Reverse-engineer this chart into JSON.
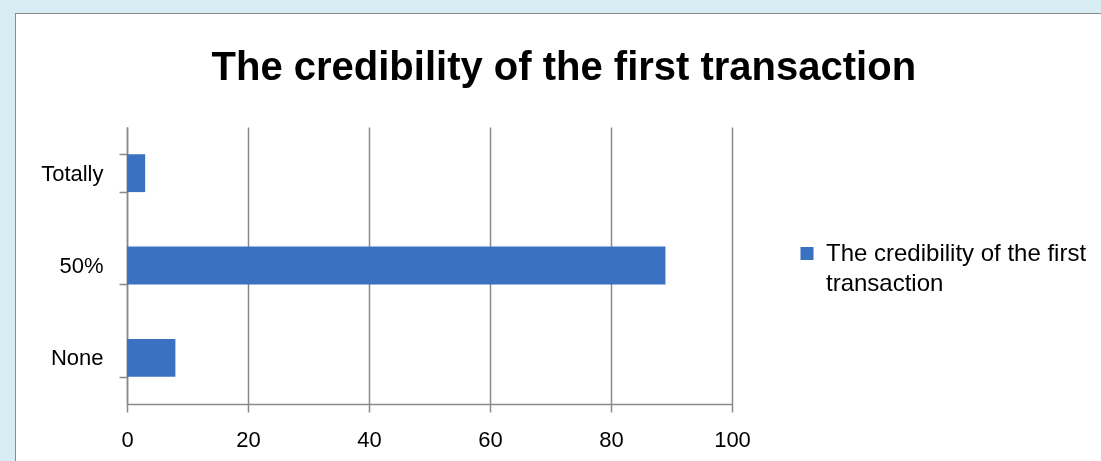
{
  "chart_data": {
    "type": "bar",
    "orientation": "horizontal",
    "title": "The credibility of the first transaction",
    "categories": [
      "Totally",
      "50%",
      "None"
    ],
    "series": [
      {
        "name": "The credibility of the first transaction",
        "color": "#3a71c1",
        "values": [
          3,
          89,
          8
        ]
      }
    ],
    "xlim": [
      0,
      100
    ],
    "xticks": [
      0,
      20,
      40,
      60,
      80,
      100
    ],
    "grid": "x",
    "legend": "right"
  }
}
